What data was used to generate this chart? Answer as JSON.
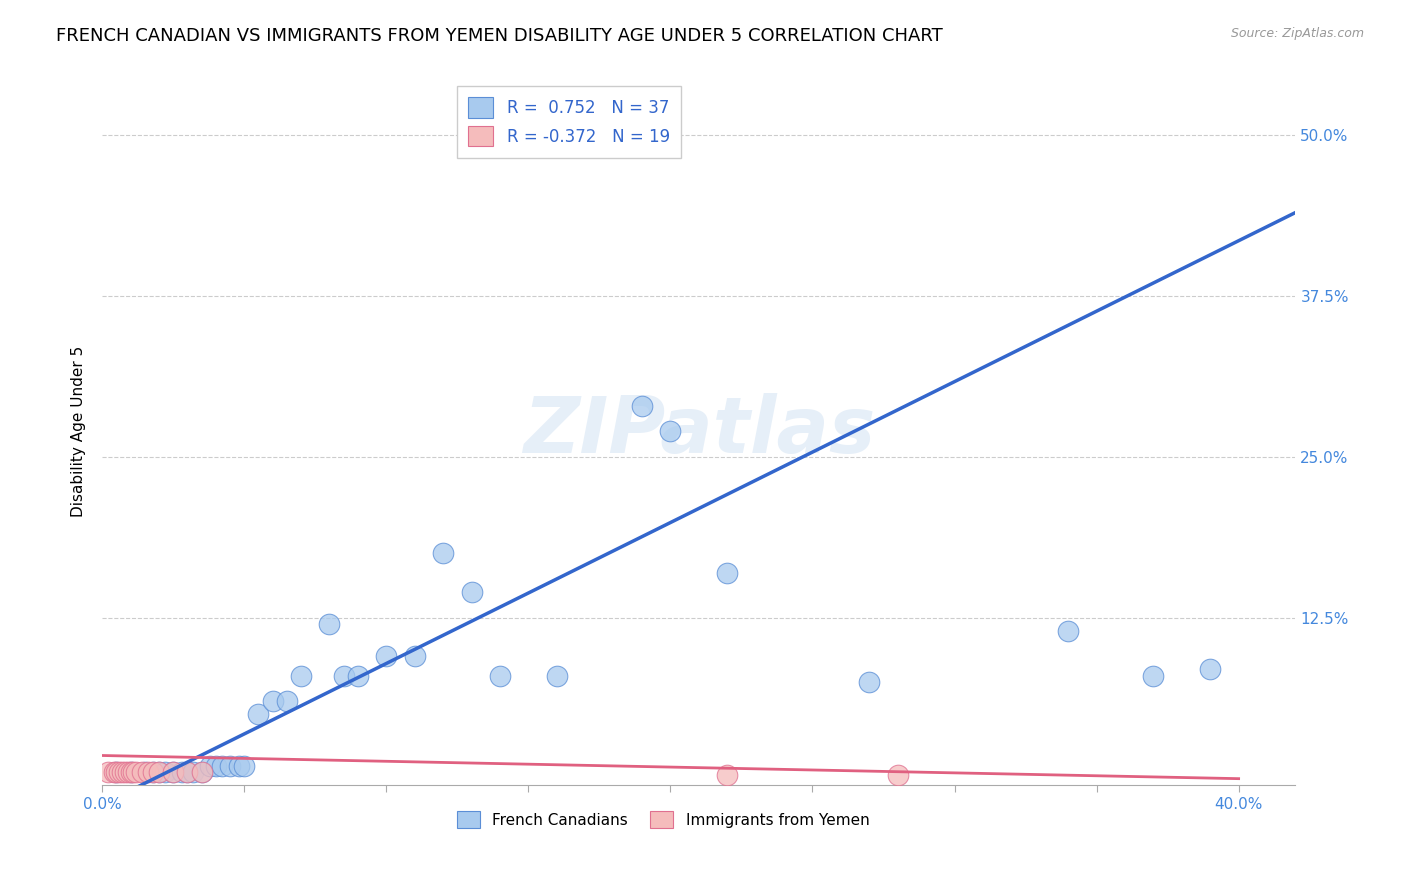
{
  "title": "FRENCH CANADIAN VS IMMIGRANTS FROM YEMEN DISABILITY AGE UNDER 5 CORRELATION CHART",
  "source": "Source: ZipAtlas.com",
  "ylabel": "Disability Age Under 5",
  "xlim": [
    0.0,
    0.42
  ],
  "ylim": [
    -0.005,
    0.545
  ],
  "xticks": [
    0.0,
    0.05,
    0.1,
    0.15,
    0.2,
    0.25,
    0.3,
    0.35,
    0.4
  ],
  "yticks": [
    0.0,
    0.125,
    0.25,
    0.375,
    0.5
  ],
  "xticklabels_show": [
    "0.0%",
    "",
    "",
    "",
    "",
    "",
    "",
    "",
    "40.0%"
  ],
  "yticklabels": [
    "",
    "12.5%",
    "25.0%",
    "37.5%",
    "50.0%"
  ],
  "watermark": "ZIPatlas",
  "blue_scatter_x": [
    0.005,
    0.01,
    0.015,
    0.018,
    0.02,
    0.022,
    0.025,
    0.028,
    0.03,
    0.032,
    0.035,
    0.038,
    0.04,
    0.042,
    0.045,
    0.048,
    0.05,
    0.055,
    0.06,
    0.065,
    0.07,
    0.08,
    0.085,
    0.09,
    0.1,
    0.11,
    0.12,
    0.13,
    0.14,
    0.16,
    0.19,
    0.2,
    0.22,
    0.27,
    0.34,
    0.37,
    0.39
  ],
  "blue_scatter_y": [
    0.005,
    0.005,
    0.005,
    0.005,
    0.005,
    0.005,
    0.005,
    0.005,
    0.005,
    0.005,
    0.005,
    0.01,
    0.01,
    0.01,
    0.01,
    0.01,
    0.01,
    0.05,
    0.06,
    0.06,
    0.08,
    0.12,
    0.08,
    0.08,
    0.095,
    0.095,
    0.175,
    0.145,
    0.08,
    0.08,
    0.29,
    0.27,
    0.16,
    0.075,
    0.115,
    0.08,
    0.085
  ],
  "pink_scatter_x": [
    0.002,
    0.004,
    0.005,
    0.006,
    0.007,
    0.008,
    0.009,
    0.01,
    0.011,
    0.012,
    0.014,
    0.016,
    0.018,
    0.02,
    0.025,
    0.03,
    0.035,
    0.22,
    0.28
  ],
  "pink_scatter_y": [
    0.005,
    0.005,
    0.005,
    0.005,
    0.005,
    0.005,
    0.005,
    0.005,
    0.005,
    0.005,
    0.005,
    0.005,
    0.005,
    0.005,
    0.005,
    0.005,
    0.005,
    0.003,
    0.003
  ],
  "blue_line_x": [
    0.0,
    0.42
  ],
  "blue_line_y": [
    -0.02,
    0.44
  ],
  "pink_line_x": [
    0.0,
    0.4
  ],
  "pink_line_y": [
    0.018,
    0.0
  ],
  "blue_color": "#A8CAEE",
  "blue_edge_color": "#5B8ED6",
  "blue_line_color": "#3366CC",
  "pink_color": "#F5BCBC",
  "pink_edge_color": "#E07090",
  "pink_line_color": "#E06080",
  "r_blue": "0.752",
  "n_blue": "37",
  "r_pink": "-0.372",
  "n_pink": "19",
  "legend_label_blue": "French Canadians",
  "legend_label_pink": "Immigrants from Yemen",
  "background_color": "#ffffff",
  "grid_color": "#cccccc",
  "tick_color": "#4488DD",
  "title_color": "#000000",
  "title_fontsize": 13,
  "axis_label_fontsize": 11,
  "tick_fontsize": 11
}
